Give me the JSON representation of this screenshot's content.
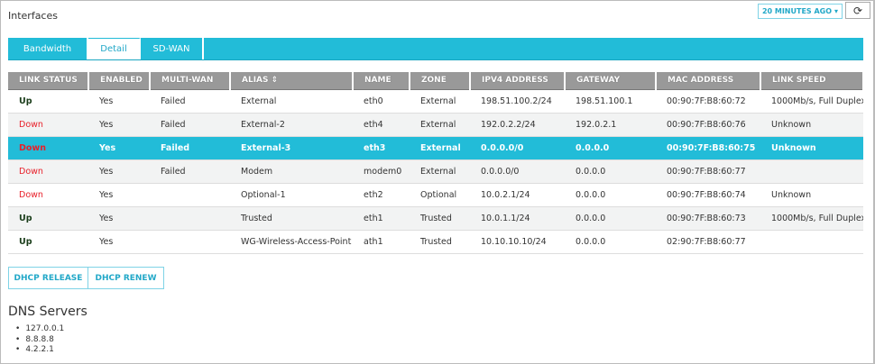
{
  "header": {
    "title": "Interfaces",
    "time_range": "20 MINUTES AGO",
    "refresh_icon": "refresh-icon"
  },
  "tabs": [
    {
      "label": "Bandwidth"
    },
    {
      "label": "Detail",
      "active": true
    },
    {
      "label": "SD-WAN"
    }
  ],
  "table": {
    "columns": [
      "LINK STATUS",
      "ENABLED",
      "MULTI-WAN",
      "ALIAS",
      "NAME",
      "ZONE",
      "IPV4 ADDRESS",
      "GATEWAY",
      "MAC ADDRESS",
      "LINK SPEED"
    ],
    "sorted_column": "ALIAS",
    "rows": [
      [
        "Up",
        "Yes",
        "Failed",
        "External",
        "eth0",
        "External",
        "198.51.100.2/24",
        "198.51.100.1",
        "00:90:7F:B8:60:72",
        "1000Mb/s, Full Duplex"
      ],
      [
        "Down",
        "Yes",
        "Failed",
        "External-2",
        "eth4",
        "External",
        "192.0.2.2/24",
        "192.0.2.1",
        "00:90:7F:B8:60:76",
        "Unknown"
      ],
      [
        "Down",
        "Yes",
        "Failed",
        "External-3",
        "eth3",
        "External",
        "0.0.0.0/0",
        "0.0.0.0",
        "00:90:7F:B8:60:75",
        "Unknown"
      ],
      [
        "Down",
        "Yes",
        "Failed",
        "Modem",
        "modem0",
        "External",
        "0.0.0.0/0",
        "0.0.0.0",
        "00:90:7F:B8:60:77",
        ""
      ],
      [
        "Down",
        "Yes",
        "",
        "Optional-1",
        "eth2",
        "Optional",
        "10.0.2.1/24",
        "0.0.0.0",
        "00:90:7F:B8:60:74",
        "Unknown"
      ],
      [
        "Up",
        "Yes",
        "",
        "Trusted",
        "eth1",
        "Trusted",
        "10.0.1.1/24",
        "0.0.0.0",
        "00:90:7F:B8:60:73",
        "1000Mb/s, Full Duplex"
      ],
      [
        "Up",
        "Yes",
        "",
        "WG-Wireless-Access-Point",
        "ath1",
        "Trusted",
        "10.10.10.10/24",
        "0.0.0.0",
        "02:90:7F:B8:60:77",
        ""
      ]
    ],
    "selected_row": 2
  },
  "buttons": {
    "release": "DHCP RELEASE",
    "renew": "DHCP RENEW"
  },
  "dns": {
    "title": "DNS Servers",
    "servers": [
      "127.0.0.1",
      "8.8.8.8",
      "4.2.2.1"
    ]
  },
  "colors": {
    "accent": "#22bcd8",
    "up": "#1a3d1a",
    "down": "#e8202a",
    "header": "#999999"
  }
}
